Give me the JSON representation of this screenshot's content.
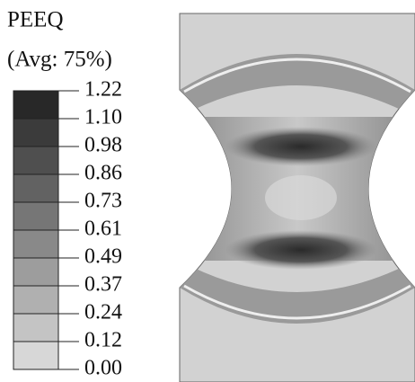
{
  "legend": {
    "title": "PEEQ",
    "subtitle": "(Avg: 75%)",
    "labels": [
      "1.22",
      "1.10",
      "0.98",
      "0.86",
      "0.73",
      "0.61",
      "0.49",
      "0.37",
      "0.24",
      "0.12",
      "0.00"
    ]
  }
}
